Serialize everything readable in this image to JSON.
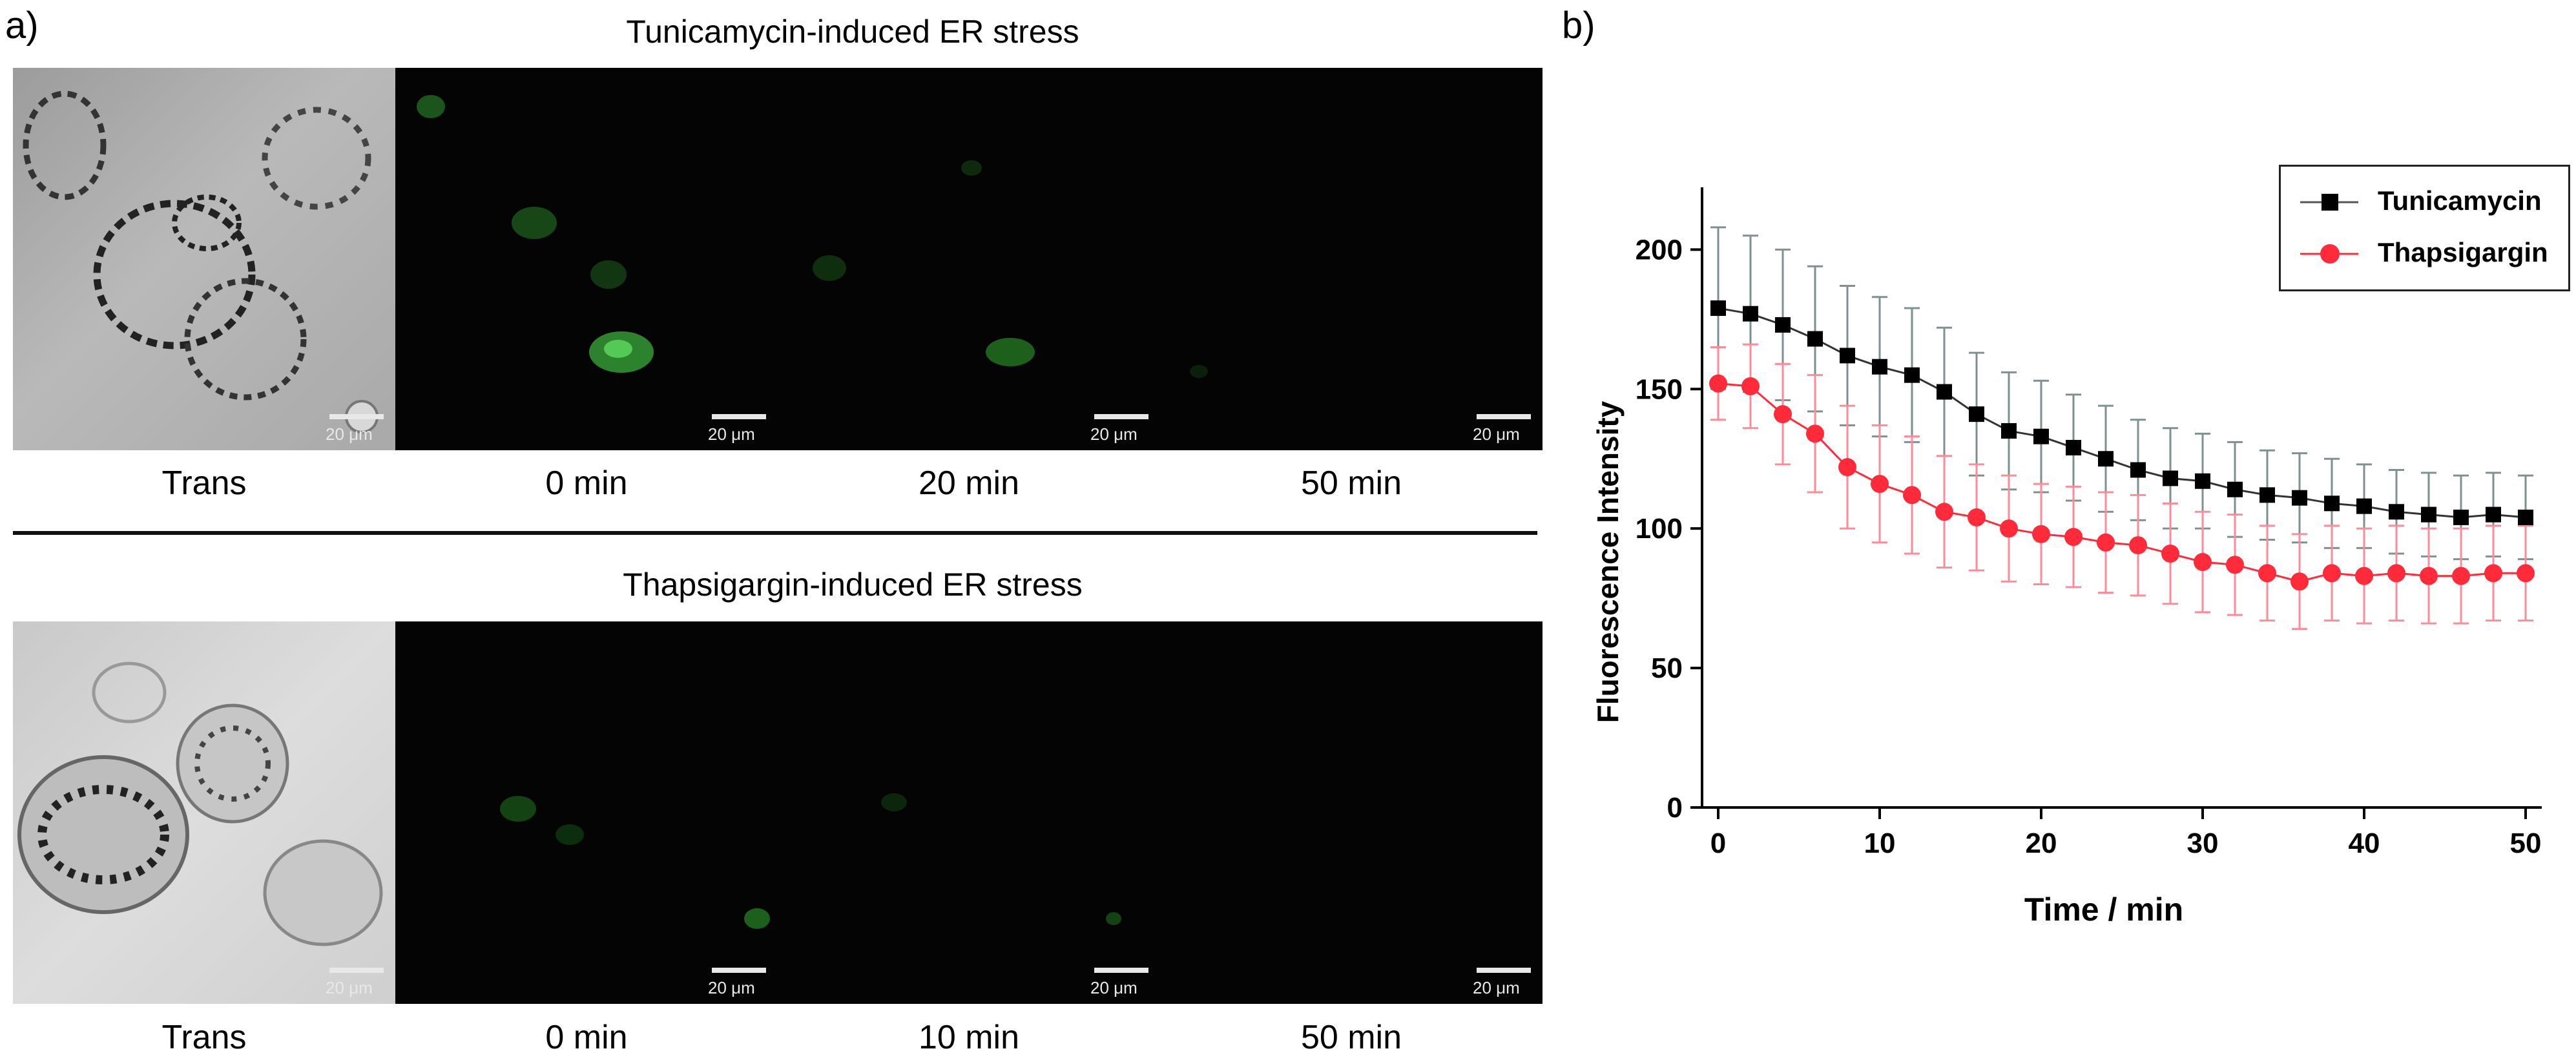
{
  "panel_a": {
    "label": "a)",
    "row1": {
      "title": "Tunicamycin-induced ER stress",
      "captions": [
        "Trans",
        "0 min",
        "20 min",
        "50 min"
      ],
      "scale": "20 μm"
    },
    "row2": {
      "title": "Thapsigargin-induced ER stress",
      "captions": [
        "Trans",
        "0 min",
        "10 min",
        "50 min"
      ],
      "scale": "20 μm"
    }
  },
  "panel_b": {
    "label": "b)"
  },
  "colors": {
    "tunicamycin": "#000000",
    "thapsigargin": "#ff2a3a",
    "tunicamycin_err": "#7f9090",
    "thapsigargin_err": "#ff8a98"
  },
  "chart_data": {
    "type": "line",
    "xlabel": "Time / min",
    "ylabel": "Fluorescence Intensity",
    "xlim": [
      -1,
      51
    ],
    "ylim": [
      0,
      220
    ],
    "xticks": [
      0,
      10,
      20,
      30,
      40,
      50
    ],
    "yticks": [
      0,
      50,
      100,
      150,
      200
    ],
    "legend_position": "top-right",
    "x": [
      0,
      2,
      4,
      6,
      8,
      10,
      12,
      14,
      16,
      18,
      20,
      22,
      24,
      26,
      28,
      30,
      32,
      34,
      36,
      38,
      40,
      42,
      44,
      46,
      48,
      50
    ],
    "series": [
      {
        "name": "Tunicamycin",
        "values": [
          179,
          177,
          173,
          168,
          162,
          158,
          155,
          149,
          141,
          135,
          133,
          129,
          125,
          121,
          118,
          117,
          114,
          112,
          111,
          109,
          108,
          106,
          105,
          104,
          105,
          104
        ],
        "errors": [
          29,
          28,
          27,
          26,
          25,
          25,
          24,
          23,
          22,
          21,
          20,
          19,
          19,
          18,
          18,
          17,
          17,
          16,
          16,
          16,
          15,
          15,
          15,
          15,
          15,
          15
        ]
      },
      {
        "name": "Thapsigargin",
        "values": [
          152,
          151,
          141,
          134,
          122,
          116,
          112,
          106,
          104,
          100,
          98,
          97,
          95,
          94,
          91,
          88,
          87,
          84,
          81,
          84,
          83,
          84,
          83,
          83,
          84,
          84
        ],
        "errors": [
          13,
          15,
          18,
          21,
          22,
          21,
          21,
          20,
          19,
          19,
          18,
          18,
          18,
          18,
          18,
          18,
          18,
          17,
          17,
          17,
          17,
          17,
          17,
          17,
          17,
          17
        ]
      }
    ]
  }
}
